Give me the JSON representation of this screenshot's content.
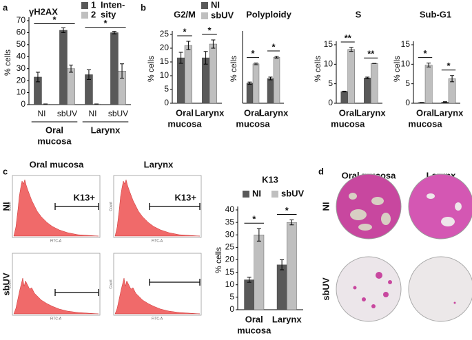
{
  "panel_labels": [
    "a",
    "b",
    "c",
    "d"
  ],
  "chart_data": [
    {
      "type": "bar",
      "title": "γH2AX",
      "ylabel": "% cells",
      "ylim": [
        0,
        70
      ],
      "yticks": [
        0,
        10,
        20,
        30,
        40,
        50,
        60,
        70
      ],
      "categories": [
        "NI",
        "sbUV",
        "NI",
        "sbUV"
      ],
      "groups": [
        {
          "name": [
            "Oral",
            "mucosa"
          ],
          "significance": "*"
        },
        {
          "name": [
            "Larynx"
          ],
          "significance": "*"
        }
      ],
      "legend_title": [
        "Inten-",
        "sity"
      ],
      "series": [
        {
          "name": "1",
          "color": "#595959",
          "values": [
            23,
            62,
            25,
            60
          ],
          "errors": [
            4,
            2,
            4,
            1
          ]
        },
        {
          "name": "2",
          "color": "#bfbfbf",
          "values": [
            0.5,
            30,
            0.5,
            28
          ],
          "errors": [
            0,
            3,
            0,
            6
          ]
        }
      ]
    },
    {
      "type": "bar",
      "title": "G2/M",
      "ylabel": "% cells",
      "ylim": [
        0,
        25
      ],
      "yticks": [
        0,
        5,
        10,
        15,
        20,
        25
      ],
      "categories": [
        [
          "Oral",
          "mucosa"
        ],
        [
          "Larynx"
        ]
      ],
      "significance": [
        "*",
        "*"
      ],
      "series": [
        {
          "name": "NI",
          "color": "#595959",
          "values": [
            16.5,
            16.5
          ],
          "errors": [
            2,
            2.3
          ]
        },
        {
          "name": "sbUV",
          "color": "#bfbfbf",
          "values": [
            21,
            21.5
          ],
          "errors": [
            1.5,
            1.5
          ]
        }
      ]
    },
    {
      "type": "bar",
      "title": "Polyploidy",
      "ylabel": "% cells",
      "ylim": [
        0,
        25
      ],
      "yticks": [],
      "categories": [
        [
          "Oral",
          "mucosa"
        ],
        [
          "Larynx"
        ]
      ],
      "significance": [
        "*",
        "*"
      ],
      "series": [
        {
          "color": "#595959",
          "values": [
            7.3,
            9
          ],
          "errors": [
            0.4,
            0.5
          ]
        },
        {
          "color": "#bfbfbf",
          "values": [
            14.3,
            16.7
          ],
          "errors": [
            0.3,
            0.3
          ]
        }
      ]
    },
    {
      "type": "bar",
      "title": "S",
      "ylabel": "% cells",
      "ylim": [
        0,
        15
      ],
      "yticks": [
        0,
        5,
        10,
        15
      ],
      "categories": [
        [
          "Oral",
          "mucosa"
        ],
        [
          "Larynx"
        ]
      ],
      "significance": [
        "**",
        "**"
      ],
      "series": [
        {
          "color": "#595959",
          "values": [
            3,
            6.5
          ],
          "errors": [
            0.1,
            0.2
          ]
        },
        {
          "color": "#bfbfbf",
          "values": [
            13.8,
            10.2
          ],
          "errors": [
            0.5,
            0
          ]
        }
      ]
    },
    {
      "type": "bar",
      "title": "Sub-G1",
      "ylabel": "% cells",
      "ylim": [
        0,
        15
      ],
      "yticks": [
        0,
        5,
        10,
        15
      ],
      "categories": [
        [
          "Oral",
          "mucosa"
        ],
        [
          "Larynx"
        ]
      ],
      "significance": [
        "*",
        "*"
      ],
      "series": [
        {
          "color": "#595959",
          "values": [
            0.2,
            0.3
          ],
          "errors": [
            0,
            0.1
          ]
        },
        {
          "color": "#bfbfbf",
          "values": [
            9.8,
            6.3
          ],
          "errors": [
            0.5,
            0.8
          ]
        }
      ]
    },
    {
      "type": "bar",
      "title": "K13",
      "ylabel": "% cells",
      "ylim": [
        0,
        40
      ],
      "yticks": [
        0,
        5,
        10,
        15,
        20,
        25,
        30,
        35,
        40
      ],
      "categories": [
        [
          "Oral",
          "mucosa"
        ],
        [
          "Larynx"
        ]
      ],
      "significance": [
        "*",
        "*"
      ],
      "series": [
        {
          "name": "NI",
          "color": "#595959",
          "values": [
            12,
            18
          ],
          "errors": [
            1,
            2
          ]
        },
        {
          "name": "sbUV",
          "color": "#bfbfbf",
          "values": [
            30,
            35
          ],
          "errors": [
            2.5,
            1
          ]
        }
      ]
    }
  ],
  "flow": {
    "columns": [
      "Oral mucosa",
      "Larynx"
    ],
    "rows": [
      "NI",
      "sbUV"
    ],
    "gate_label": "K13+",
    "x_axis": "FITC-A",
    "y_axis": "Count"
  },
  "colonies": {
    "columns": [
      "Oral mucosa",
      "Larynx"
    ],
    "rows": [
      "NI",
      "sbUV"
    ]
  }
}
